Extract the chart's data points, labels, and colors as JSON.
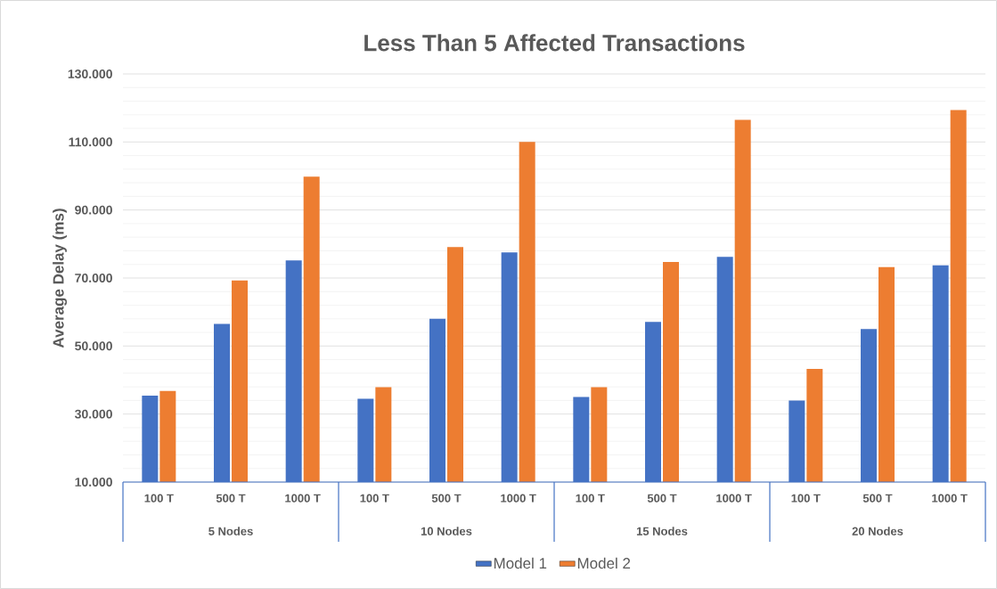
{
  "chart_data": {
    "type": "bar",
    "title": "Less Than 5 Affected Transactions",
    "ylabel": "Average Delay (ms)",
    "categories": [
      "100 T",
      "500 T",
      "1000 T",
      "100 T",
      "500 T",
      "1000 T",
      "100 T",
      "500 T",
      "1000 T",
      "100 T",
      "500 T",
      "1000 T"
    ],
    "annotations": [
      "5 Nodes",
      "10 Nodes",
      "15 Nodes",
      "20 Nodes"
    ],
    "series": [
      {
        "name": "Model 1",
        "color": "#4472c4",
        "values": [
          35400,
          56500,
          75200,
          34500,
          58000,
          77500,
          35000,
          57100,
          76200,
          34000,
          55000,
          73700
        ]
      },
      {
        "name": "Model 2",
        "color": "#ed7d31",
        "values": [
          36800,
          69300,
          99800,
          37900,
          79100,
          110000,
          37900,
          74700,
          116500,
          43300,
          73200,
          119400
        ]
      }
    ],
    "ylim": [
      10000,
      130000
    ],
    "yticks": [
      {
        "value": 10000,
        "label": "10.000"
      },
      {
        "value": 14000,
        "label": null
      },
      {
        "value": 18000,
        "label": null
      },
      {
        "value": 22000,
        "label": null
      },
      {
        "value": 26000,
        "label": null
      },
      {
        "value": 30000,
        "label": "30.000"
      },
      {
        "value": 34000,
        "label": null
      },
      {
        "value": 38000,
        "label": null
      },
      {
        "value": 42000,
        "label": null
      },
      {
        "value": 46000,
        "label": null
      },
      {
        "value": 50000,
        "label": "50.000"
      },
      {
        "value": 54000,
        "label": null
      },
      {
        "value": 58000,
        "label": null
      },
      {
        "value": 62000,
        "label": null
      },
      {
        "value": 66000,
        "label": null
      },
      {
        "value": 70000,
        "label": "70.000"
      },
      {
        "value": 74000,
        "label": null
      },
      {
        "value": 78000,
        "label": null
      },
      {
        "value": 82000,
        "label": null
      },
      {
        "value": 86000,
        "label": null
      },
      {
        "value": 90000,
        "label": "90.000"
      },
      {
        "value": 94000,
        "label": null
      },
      {
        "value": 98000,
        "label": null
      },
      {
        "value": 102000,
        "label": null
      },
      {
        "value": 106000,
        "label": null
      },
      {
        "value": 110000,
        "label": "110.000"
      },
      {
        "value": 114000,
        "label": null
      },
      {
        "value": 118000,
        "label": null
      },
      {
        "value": 122000,
        "label": null
      },
      {
        "value": 126000,
        "label": null
      },
      {
        "value": 130000,
        "label": "130.000"
      }
    ],
    "grid": "y",
    "legend": "bottom"
  }
}
